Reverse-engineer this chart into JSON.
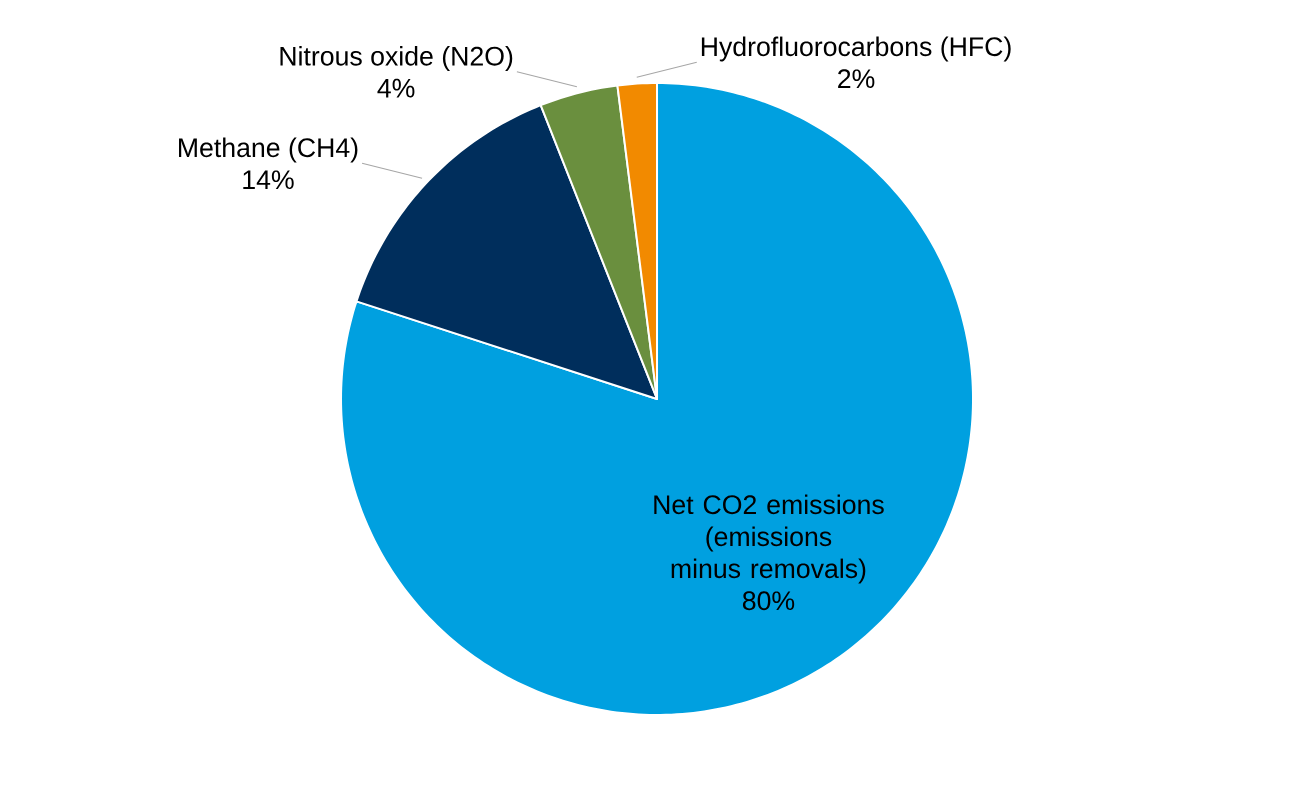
{
  "chart_data": {
    "type": "pie",
    "categories": [
      "Net CO2 emissions (emissions minus removals)",
      "Methane (CH4)",
      "Nitrous oxide (N2O)",
      "Hydrofluorocarbons (HFC)"
    ],
    "values": [
      80,
      14,
      4,
      2
    ],
    "colors": [
      "#00a0e0",
      "#002e5c",
      "#6a8f3e",
      "#f28a00"
    ],
    "value_labels": [
      "80%",
      "14%",
      "4%",
      "2%"
    ]
  }
}
